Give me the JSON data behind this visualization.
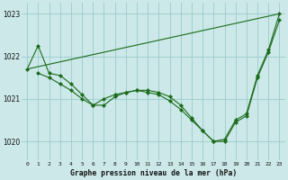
{
  "title": "Graphe pression niveau de la mer (hPa)",
  "bg_color": "#cce8e8",
  "grid_color": "#99cccc",
  "line_color": "#1a6b1a",
  "marker_color": "#1a6b1a",
  "xlim": [
    -0.5,
    23.5
  ],
  "ylim": [
    1019.55,
    1023.25
  ],
  "yticks": [
    1020,
    1021,
    1022,
    1023
  ],
  "xticks": [
    0,
    1,
    2,
    3,
    4,
    5,
    6,
    7,
    8,
    9,
    10,
    11,
    12,
    13,
    14,
    15,
    16,
    17,
    18,
    19,
    20,
    21,
    22,
    23
  ],
  "series": [
    {
      "x": [
        0,
        1,
        2,
        3,
        4,
        5,
        6,
        7,
        8,
        9,
        10,
        11,
        12,
        13,
        14,
        15,
        16,
        17,
        18,
        19,
        20,
        21,
        22,
        23
      ],
      "y": [
        1021.7,
        1022.25,
        1021.6,
        1021.55,
        1021.35,
        1021.1,
        1020.85,
        1021.0,
        1021.1,
        1021.15,
        1021.2,
        1021.2,
        1021.15,
        1021.05,
        1020.85,
        1020.55,
        1020.25,
        1020.0,
        1020.05,
        1020.5,
        1020.65,
        1021.55,
        1022.15,
        1023.0
      ]
    },
    {
      "x": [
        1,
        2,
        3,
        4,
        5,
        6,
        7,
        8,
        9,
        10,
        11,
        12,
        13,
        14,
        15,
        16,
        17,
        18,
        19,
        20,
        21,
        22,
        23
      ],
      "y": [
        1021.6,
        1021.5,
        1021.35,
        1021.2,
        1021.0,
        1020.85,
        1020.85,
        1021.05,
        1021.15,
        1021.2,
        1021.15,
        1021.1,
        1020.95,
        1020.75,
        1020.5,
        1020.25,
        1020.0,
        1020.0,
        1020.45,
        1020.6,
        1021.5,
        1022.1,
        1022.85
      ]
    },
    {
      "x": [
        0,
        23
      ],
      "y": [
        1021.7,
        1023.0
      ],
      "no_markers": true
    }
  ]
}
